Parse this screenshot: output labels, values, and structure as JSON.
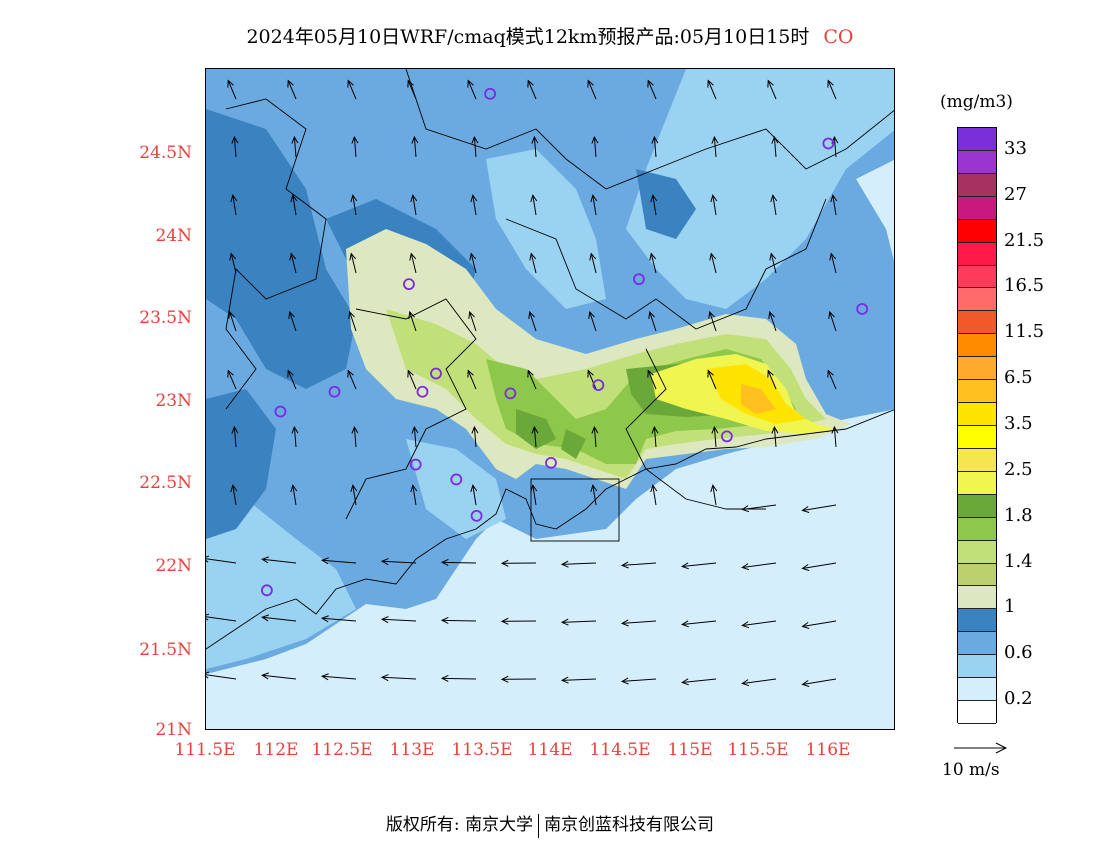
{
  "title": {
    "main": "2024年05月10日WRF/cmaq模式12km预报产品:05月10日15时",
    "species": "CO"
  },
  "map": {
    "lat_labels": [
      "24.5N",
      "24N",
      "23.5N",
      "23N",
      "22.5N",
      "22N",
      "21.5N",
      "21N"
    ],
    "lon_labels": [
      "111.5E",
      "112E",
      "112.5E",
      "113E",
      "113.5E",
      "114E",
      "114.5E",
      "115E",
      "115.5E",
      "116E"
    ],
    "lon_range": [
      111.5,
      116.6
    ],
    "lat_range": [
      21.0,
      25.0
    ],
    "stations": [
      {
        "lon": 113.6,
        "lat": 24.85
      },
      {
        "lon": 116.1,
        "lat": 24.55
      },
      {
        "lon": 113.0,
        "lat": 23.7
      },
      {
        "lon": 114.7,
        "lat": 23.73
      },
      {
        "lon": 116.35,
        "lat": 23.55
      },
      {
        "lon": 112.45,
        "lat": 23.05
      },
      {
        "lon": 113.1,
        "lat": 23.05
      },
      {
        "lon": 113.2,
        "lat": 23.16
      },
      {
        "lon": 113.75,
        "lat": 23.04
      },
      {
        "lon": 114.4,
        "lat": 23.09
      },
      {
        "lon": 112.05,
        "lat": 22.93
      },
      {
        "lon": 113.05,
        "lat": 22.61
      },
      {
        "lon": 113.35,
        "lat": 22.52
      },
      {
        "lon": 114.05,
        "lat": 22.62
      },
      {
        "lon": 113.5,
        "lat": 22.3
      },
      {
        "lon": 115.35,
        "lat": 22.78
      },
      {
        "lon": 111.95,
        "lat": 21.85
      }
    ]
  },
  "colorbar": {
    "unit": "(mg/m3)",
    "colors": [
      "#7b2fd8",
      "#9a35d0",
      "#a8325e",
      "#c8197e",
      "#ff0000",
      "#ff1a4a",
      "#ff3a5a",
      "#ff6a6a",
      "#f05a2a",
      "#ff8c00",
      "#ffaa2a",
      "#ffc020",
      "#ffe400",
      "#ffff00",
      "#f5e650",
      "#f0f550",
      "#6aa83a",
      "#8ec84a",
      "#c2e07a",
      "#bcd070",
      "#dde8c0",
      "#3a82c0",
      "#6aaae0",
      "#9ad2f2",
      "#d4eefc",
      "#ffffff"
    ],
    "labels": [
      "33",
      "27",
      "21.5",
      "16.5",
      "11.5",
      "6.5",
      "3.5",
      "2.5",
      "1.8",
      "1.4",
      "1",
      "0.6",
      "0.2"
    ]
  },
  "vector_legend": {
    "label": "10 m/s"
  },
  "footer": {
    "copyright_prefix": "版权所有:",
    "org1": "南京大学",
    "org2": "南京创蓝科技有限公司"
  }
}
